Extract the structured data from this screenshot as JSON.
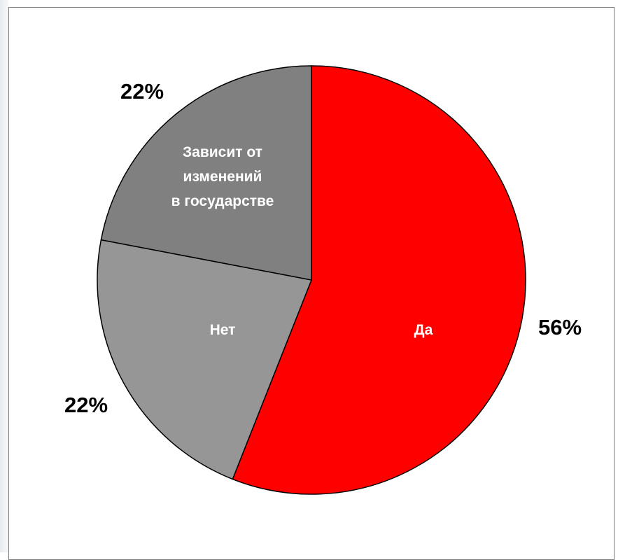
{
  "chart_data": {
    "type": "pie",
    "slices": [
      {
        "label": "Да",
        "value": 56,
        "value_label": "56%",
        "color": "#ff0000"
      },
      {
        "label": "Нет",
        "value": 22,
        "value_label": "22%",
        "color": "#969696"
      },
      {
        "label": "Зависит от изменений в государстве",
        "label_lines": [
          "Зависит от",
          "изменений",
          "в государстве"
        ],
        "value": 22,
        "value_label": "22%",
        "color": "#808080"
      }
    ]
  }
}
